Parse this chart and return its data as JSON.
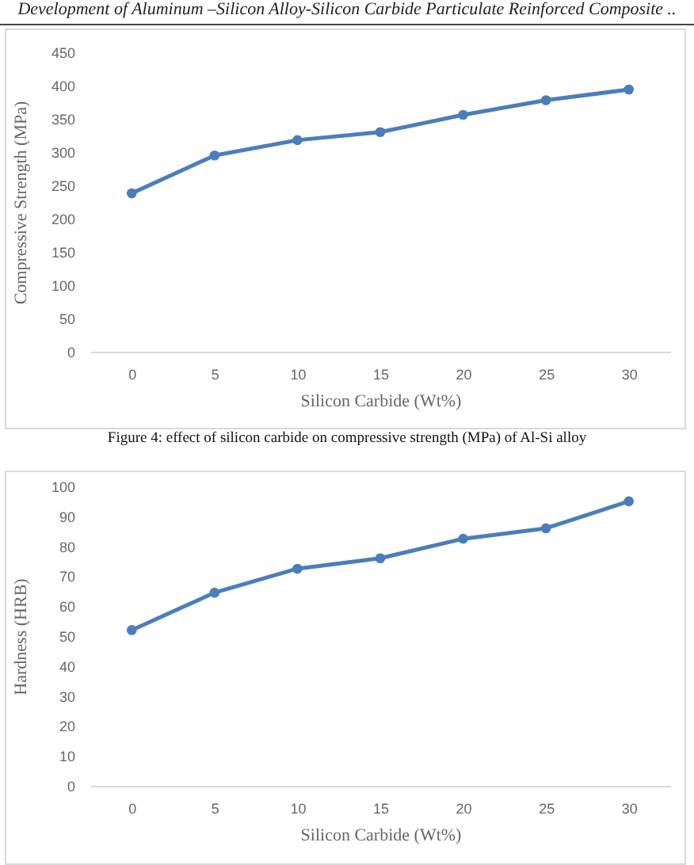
{
  "chart_data": [
    {
      "type": "line",
      "xlabel": "Silicon Carbide (Wt%)",
      "ylabel": "Compressive Strength (MPa)",
      "annotations": [
        "Development of Aluminum –Silicon Alloy-Silicon Carbide Particulate Reinforced Composite ..",
        "Figure 4: effect of silicon carbide on compressive strength (MPa) of Al-Si alloy"
      ],
      "categories": [
        "0",
        "5",
        "10",
        "15",
        "20",
        "25",
        "30"
      ],
      "series": [
        {
          "color": "#4a7ebb",
          "values": [
            238,
            295,
            318,
            330,
            356,
            378,
            394
          ]
        }
      ],
      "ylim": [
        0,
        450
      ],
      "yticks": [
        0,
        50,
        100,
        150,
        200,
        250,
        300,
        350,
        400,
        450
      ],
      "grid": false,
      "marker": "circle",
      "line_style": "solid"
    },
    {
      "type": "line",
      "xlabel": "Silicon Carbide (Wt%)",
      "ylabel": "Hardness (HRB)",
      "categories": [
        "0",
        "5",
        "10",
        "15",
        "20",
        "25",
        "30"
      ],
      "series": [
        {
          "color": "#4a7ebb",
          "values": [
            52,
            64.5,
            72.5,
            76,
            82.5,
            86,
            95
          ]
        }
      ],
      "ylim": [
        0,
        100
      ],
      "yticks": [
        0,
        10,
        20,
        30,
        40,
        50,
        60,
        70,
        80,
        90,
        100
      ],
      "grid": false,
      "marker": "circle",
      "line_style": "solid"
    }
  ]
}
